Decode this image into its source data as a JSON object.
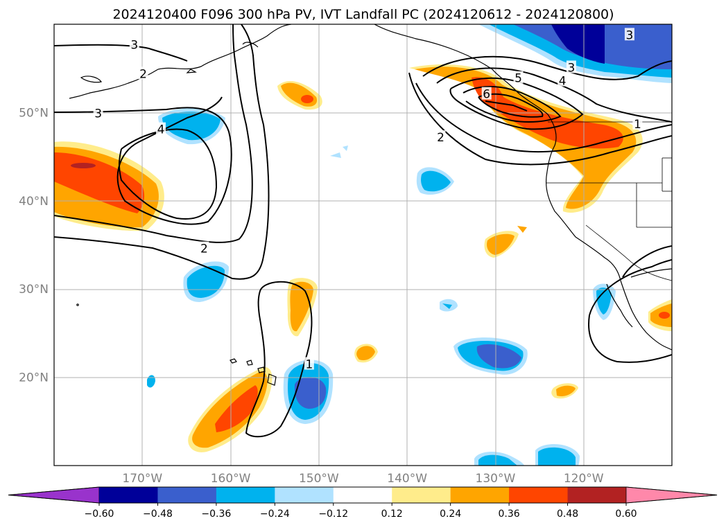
{
  "title": "2024120400 F096 300 hPa PV, IVT Landfall PC (2024120612 - 2024120800)",
  "colors": {
    "neg": [
      "#9933cc",
      "#000099",
      "#3a5fcd",
      "#00b2ee",
      "#b0e2ff"
    ],
    "zero": "#ffffff",
    "pos": [
      "#ffec8b",
      "#ffa500",
      "#ff4500",
      "#b22222",
      "#ff88aa"
    ],
    "coast": "#000000",
    "grid": "#b0b0b0"
  },
  "map": {
    "lon_range": [
      -180,
      -110
    ],
    "lat_range": [
      10,
      60
    ],
    "lat_ticks": [
      {
        "value": 50,
        "label": "50°N"
      },
      {
        "value": 40,
        "label": "40°N"
      },
      {
        "value": 30,
        "label": "30°N"
      },
      {
        "value": 20,
        "label": "20°N"
      }
    ],
    "lon_ticks": [
      {
        "value": -170,
        "label": "170°W"
      },
      {
        "value": -160,
        "label": "160°W"
      },
      {
        "value": -150,
        "label": "150°W"
      },
      {
        "value": -140,
        "label": "140°W"
      },
      {
        "value": -130,
        "label": "130°W"
      },
      {
        "value": -120,
        "label": "120°W"
      }
    ]
  },
  "colorbar": {
    "labels": [
      "−0.60",
      "−0.48",
      "−0.36",
      "−0.24",
      "−0.12",
      "0.12",
      "0.24",
      "0.36",
      "0.48",
      "0.60"
    ]
  },
  "contour_labels": [
    {
      "text": "3",
      "lon": -170.9,
      "lat": 57.7
    },
    {
      "text": "2",
      "lon": -169.9,
      "lat": 54.4
    },
    {
      "text": "3",
      "lon": -175.0,
      "lat": 49.9
    },
    {
      "text": "4",
      "lon": -167.9,
      "lat": 48.1
    },
    {
      "text": "2",
      "lon": -163.0,
      "lat": 34.6
    },
    {
      "text": "2",
      "lon": -136.2,
      "lat": 47.2
    },
    {
      "text": "3",
      "lon": -121.4,
      "lat": 55.1
    },
    {
      "text": "4",
      "lon": -122.4,
      "lat": 53.6
    },
    {
      "text": "5",
      "lon": -127.4,
      "lat": 53.9
    },
    {
      "text": "6",
      "lon": -131.0,
      "lat": 52.1
    },
    {
      "text": "3",
      "lon": -114.8,
      "lat": 58.8
    },
    {
      "text": "1",
      "lon": -113.9,
      "lat": 48.7
    },
    {
      "text": "1",
      "lon": -151.1,
      "lat": 21.5
    }
  ]
}
